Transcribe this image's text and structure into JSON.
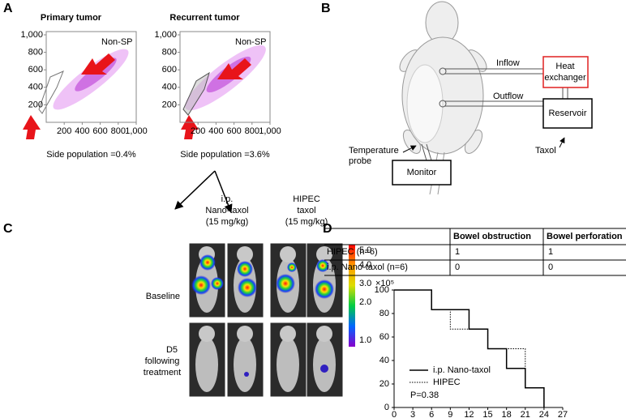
{
  "panel_labels": [
    "A",
    "B",
    "C",
    "D"
  ],
  "chart_data": [
    {
      "type": "scatter",
      "title": "Primary tumor",
      "annotations": [
        "Non-SP",
        "Side population =0.4%"
      ],
      "xlim": [
        0,
        1000
      ],
      "ylim": [
        0,
        1000
      ],
      "xticks": [
        200,
        400,
        600,
        800,
        {
          "value": 1000,
          "label": "1,000"
        }
      ],
      "yticks": [
        200,
        400,
        600,
        800,
        {
          "value": 1000,
          "label": "1,000"
        }
      ]
    },
    {
      "type": "scatter",
      "title": "Recurrent tumor",
      "annotations": [
        "Non-SP",
        "Side population =3.6%"
      ],
      "xlim": [
        0,
        1000
      ],
      "ylim": [
        0,
        1000
      ],
      "xticks": [
        200,
        400,
        600,
        800,
        {
          "value": 1000,
          "label": "1,000"
        }
      ],
      "yticks": [
        200,
        400,
        600,
        800,
        {
          "value": 1000,
          "label": "1,000"
        }
      ]
    },
    {
      "type": "line",
      "step": true,
      "x": [
        0,
        6,
        9,
        12,
        15,
        18,
        21,
        24
      ],
      "series": [
        {
          "name": "i.p. Nano-taxol",
          "color": "#000000",
          "dashed": false,
          "values": [
            100,
            83.3,
            83.3,
            66.7,
            50,
            33.3,
            16.7,
            0
          ]
        },
        {
          "name": "HIPEC",
          "color": "#000000",
          "dashed": true,
          "values": [
            100,
            83.3,
            66.7,
            66.7,
            50,
            50,
            16.7,
            0
          ]
        }
      ],
      "xlim": [
        0,
        27
      ],
      "ylim": [
        0,
        100
      ],
      "xticks": [
        0,
        3,
        6,
        9,
        12,
        15,
        18,
        21,
        24,
        27
      ],
      "yticks": [
        0,
        20,
        40,
        60,
        80,
        100
      ],
      "legend": "lower left",
      "annotations": [
        "P=0.38"
      ]
    }
  ],
  "panel_b": {
    "inflow": "Inflow",
    "outflow": "Outflow",
    "heat_exchanger": [
      "Heat",
      "exchanger"
    ],
    "reservoir": "Reservoir",
    "taxol": "Taxol",
    "temperature_probe": [
      "Temperature",
      "probe"
    ],
    "monitor": "Monitor"
  },
  "panel_c": {
    "columns": [
      [
        "i.p.",
        "Nano-taxol",
        "(15 mg/kg)"
      ],
      [
        "HIPEC",
        "taxol",
        "(15 mg/kg)"
      ]
    ],
    "rows": [
      [
        "Baseline"
      ],
      [
        "D5",
        "following",
        "treatment"
      ]
    ],
    "colorbar": {
      "ticks": [
        "5.0",
        "4.0",
        "3.0",
        "2.0",
        "1.0"
      ],
      "unit": "×10⁵"
    }
  },
  "panel_d_table": {
    "header": [
      "Bowel obstruction",
      "Bowel perforation"
    ],
    "rows": [
      [
        "HIPEC (n=6)",
        1,
        1
      ],
      [
        "i.p. Nano-taxol (n=6)",
        0,
        0
      ]
    ]
  }
}
